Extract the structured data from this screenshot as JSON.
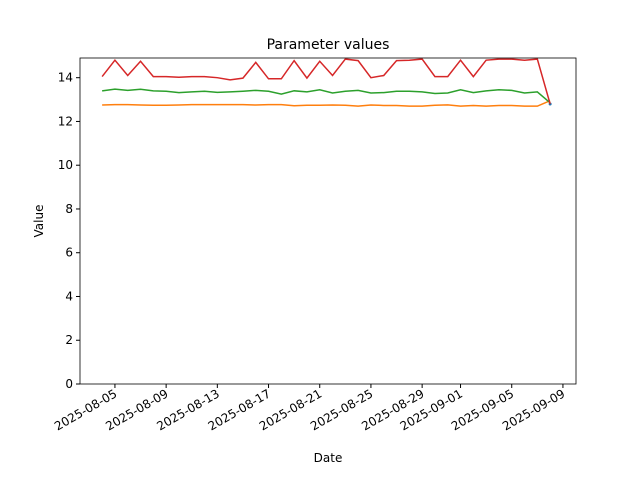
{
  "chart_data": {
    "type": "line",
    "title": "Parameter values",
    "x_label": "Date",
    "y_label": "Value",
    "x": [
      "2025-08-04",
      "2025-08-05",
      "2025-08-06",
      "2025-08-07",
      "2025-08-08",
      "2025-08-09",
      "2025-08-10",
      "2025-08-11",
      "2025-08-12",
      "2025-08-13",
      "2025-08-14",
      "2025-08-15",
      "2025-08-16",
      "2025-08-17",
      "2025-08-18",
      "2025-08-19",
      "2025-08-20",
      "2025-08-21",
      "2025-08-22",
      "2025-08-23",
      "2025-08-24",
      "2025-08-25",
      "2025-08-26",
      "2025-08-27",
      "2025-08-28",
      "2025-08-29",
      "2025-08-30",
      "2025-08-31",
      "2025-09-01",
      "2025-09-02",
      "2025-09-03",
      "2025-09-04",
      "2025-09-05",
      "2025-09-06",
      "2025-09-07",
      "2025-09-08"
    ],
    "series": [
      {
        "color": "#1f77b4",
        "values": [
          null,
          null,
          null,
          null,
          null,
          null,
          null,
          null,
          null,
          null,
          null,
          null,
          null,
          null,
          null,
          null,
          null,
          null,
          null,
          null,
          null,
          null,
          null,
          null,
          null,
          null,
          null,
          null,
          null,
          null,
          null,
          null,
          null,
          null,
          null,
          12.8
        ]
      },
      {
        "color": "#ff7f0e",
        "values": [
          12.75,
          12.77,
          12.77,
          12.75,
          12.74,
          12.74,
          12.75,
          12.77,
          12.77,
          12.77,
          12.77,
          12.77,
          12.75,
          12.77,
          12.77,
          12.72,
          12.74,
          12.74,
          12.75,
          12.74,
          12.7,
          12.75,
          12.73,
          12.73,
          12.7,
          12.7,
          12.74,
          12.76,
          12.7,
          12.73,
          12.7,
          12.73,
          12.73,
          12.7,
          12.7,
          12.95
        ]
      },
      {
        "color": "#2ca02c",
        "values": [
          13.4,
          13.48,
          13.42,
          13.47,
          13.4,
          13.38,
          13.32,
          13.35,
          13.38,
          13.33,
          13.35,
          13.38,
          13.42,
          13.38,
          13.25,
          13.4,
          13.35,
          13.45,
          13.3,
          13.38,
          13.42,
          13.3,
          13.32,
          13.38,
          13.38,
          13.35,
          13.28,
          13.3,
          13.45,
          13.32,
          13.4,
          13.45,
          13.42,
          13.3,
          13.35,
          12.85
        ]
      },
      {
        "color": "#d62728",
        "values": [
          14.05,
          14.8,
          14.1,
          14.75,
          14.05,
          14.05,
          14.02,
          14.05,
          14.05,
          14.0,
          13.9,
          13.98,
          14.7,
          13.95,
          13.95,
          14.78,
          13.98,
          14.75,
          14.1,
          14.85,
          14.78,
          14.0,
          14.1,
          14.78,
          14.8,
          14.85,
          14.05,
          14.05,
          14.8,
          14.05,
          14.8,
          14.85,
          14.85,
          14.8,
          14.85,
          12.8
        ]
      }
    ],
    "xlim": [
      "2025-08-02T06:30:00Z",
      "2025-09-10T00:30:00Z"
    ],
    "xticks": [
      "2025-08-05",
      "2025-08-09",
      "2025-08-13",
      "2025-08-17",
      "2025-08-21",
      "2025-08-25",
      "2025-08-29",
      "2025-09-01",
      "2025-09-05",
      "2025-09-09"
    ],
    "ylim": [
      0,
      14.9
    ],
    "yticks": [
      0,
      2,
      4,
      6,
      8,
      10,
      12,
      14
    ]
  }
}
